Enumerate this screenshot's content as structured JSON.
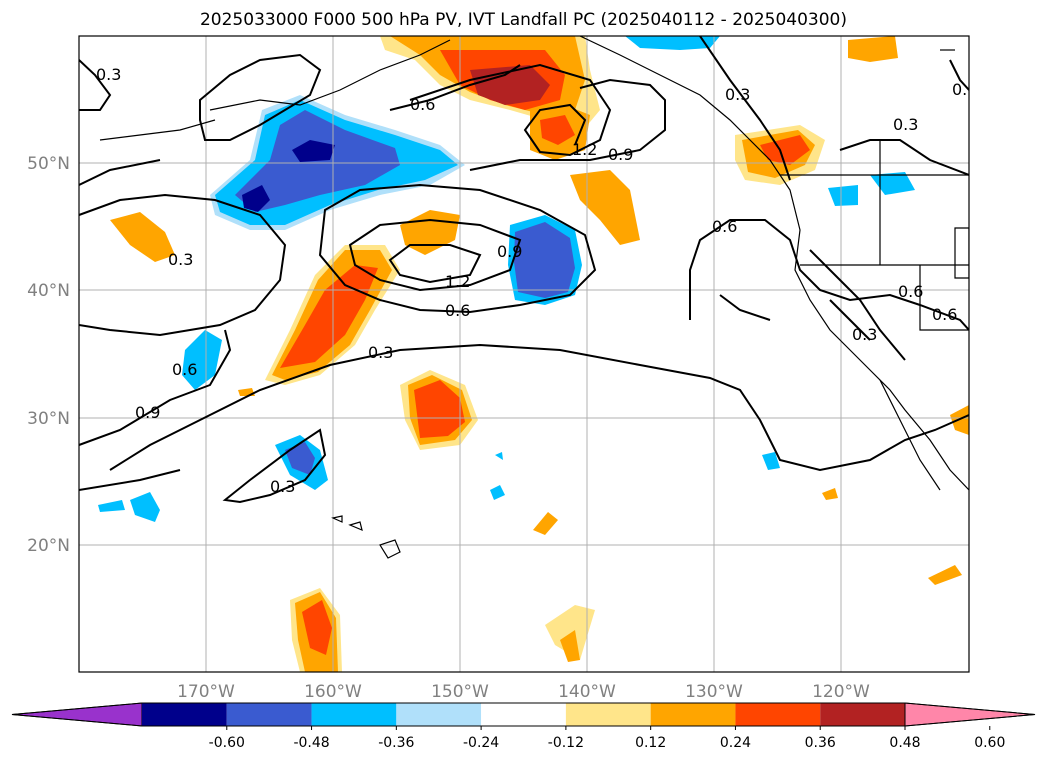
{
  "title": "2025033000 F000 500 hPa PV, IVT Landfall PC (2025040112 - 2025040300)",
  "map": {
    "lat_labels": [
      "50°N",
      "40°N",
      "30°N",
      "20°N"
    ],
    "lon_labels": [
      "170°W",
      "160°W",
      "150°W",
      "140°W",
      "130°W",
      "120°W"
    ],
    "extent": {
      "lon_min": -180,
      "lon_max": -110,
      "lat_min": 10,
      "lat_max": 60
    },
    "grid": true,
    "contour_labels": [
      "0.3",
      "0.6",
      "0.9",
      "1.2"
    ]
  },
  "colorbar": {
    "ticks": [
      "-0.60",
      "-0.48",
      "-0.36",
      "-0.24",
      "-0.12",
      "0.12",
      "0.24",
      "0.36",
      "0.48",
      "0.60"
    ],
    "colors": [
      "#9932cc",
      "#00008b",
      "#3a5bd0",
      "#00bfff",
      "#b0e0fa",
      "#ffffff",
      "#ffe58a",
      "#ffa500",
      "#ff4500",
      "#b22222",
      "#ff86a9"
    ],
    "extend": "both"
  }
}
